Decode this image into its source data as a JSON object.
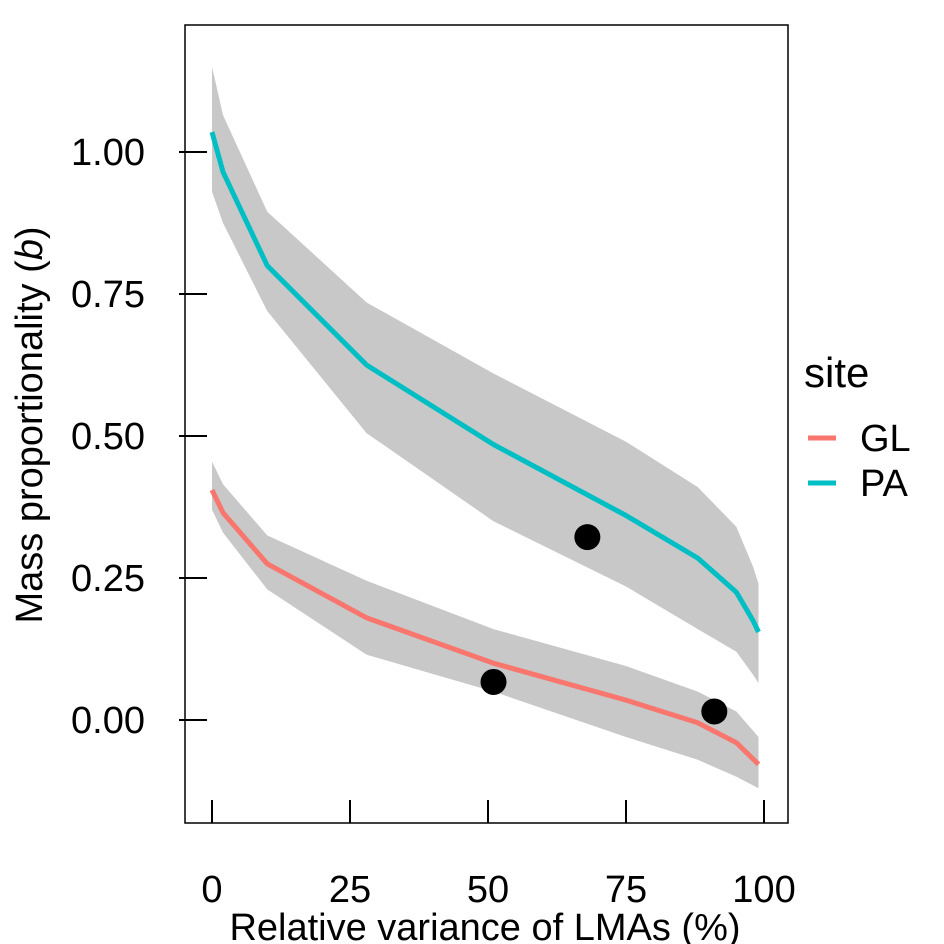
{
  "chart_data": {
    "type": "line",
    "xlabel": "Relative variance of LMAs (%)",
    "ylabel": "Mass proportionality (",
    "ylabel_italic": "b",
    "ylabel_close": ")",
    "xlim": [
      -5,
      104
    ],
    "ylim": [
      -0.18,
      1.23
    ],
    "x_ticks": [
      0,
      25,
      50,
      75,
      100
    ],
    "x_tick_labels": [
      "0",
      "25",
      "50",
      "75",
      "100"
    ],
    "y_ticks": [
      0.0,
      0.25,
      0.5,
      0.75,
      1.0
    ],
    "y_tick_labels": [
      "0.00",
      "0.25",
      "0.50",
      "0.75",
      "1.00"
    ],
    "grid": false,
    "legend": {
      "title": "site",
      "placement": "right",
      "entries": [
        {
          "label": "GL",
          "color": "#F8766D"
        },
        {
          "label": "PA",
          "color": "#00BFC4"
        }
      ]
    },
    "series": [
      {
        "name": "GL",
        "color": "#F8766D",
        "x": [
          0,
          2,
          10,
          28,
          51,
          75,
          88,
          95,
          99
        ],
        "y": [
          0.405,
          0.365,
          0.275,
          0.18,
          0.1,
          0.035,
          -0.005,
          -0.04,
          -0.078
        ],
        "ci_lower": [
          0.37,
          0.33,
          0.23,
          0.115,
          0.05,
          -0.03,
          -0.07,
          -0.1,
          -0.12
        ],
        "ci_upper": [
          0.455,
          0.415,
          0.325,
          0.245,
          0.16,
          0.095,
          0.05,
          0.015,
          -0.03
        ]
      },
      {
        "name": "PA",
        "color": "#00BFC4",
        "x": [
          0,
          2,
          10,
          28,
          51,
          75,
          88,
          95,
          98,
          99
        ],
        "y": [
          1.035,
          0.965,
          0.8,
          0.625,
          0.485,
          0.36,
          0.285,
          0.225,
          0.175,
          0.155
        ],
        "ci_lower": [
          0.93,
          0.875,
          0.72,
          0.505,
          0.35,
          0.235,
          0.16,
          0.12,
          0.08,
          0.065
        ],
        "ci_upper": [
          1.15,
          1.065,
          0.895,
          0.735,
          0.61,
          0.49,
          0.41,
          0.34,
          0.27,
          0.24
        ]
      }
    ],
    "points": [
      {
        "x": 51,
        "y": 0.067
      },
      {
        "x": 68,
        "y": 0.322
      },
      {
        "x": 91,
        "y": 0.015
      }
    ],
    "ribbon_color": "#C8C8C8",
    "point_color": "#000000"
  }
}
